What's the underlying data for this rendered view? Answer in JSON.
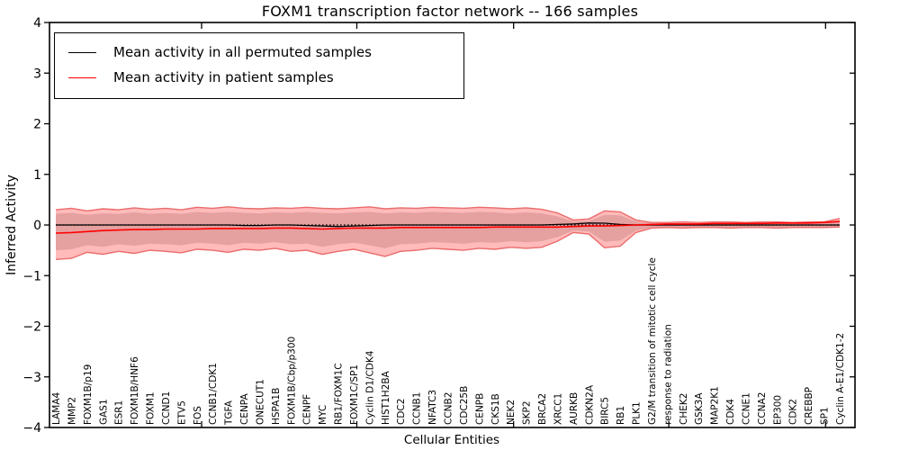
{
  "title": "FOXM1 transcription factor network -- 166 samples",
  "legend": {
    "items": [
      {
        "label": "Mean activity in all permuted samples",
        "color": "#000000"
      },
      {
        "label": "Mean activity in patient samples",
        "color": "#ff0000"
      }
    ],
    "position": "upper left"
  },
  "chart_data": {
    "type": "line",
    "title": "FOXM1 transcription factor network -- 166 samples",
    "xlabel": "Cellular Entities",
    "ylabel": "Inferred Activity",
    "ylim": [
      -4,
      4
    ],
    "yticks": [
      {
        "v": 4,
        "label": "4"
      },
      {
        "v": 3,
        "label": "3"
      },
      {
        "v": 2,
        "label": "2"
      },
      {
        "v": 1,
        "label": "1"
      },
      {
        "v": 0,
        "label": "0"
      },
      {
        "v": -1,
        "label": "−1"
      },
      {
        "v": -2,
        "label": "−2"
      },
      {
        "v": -3,
        "label": "−3"
      },
      {
        "v": -4,
        "label": "−4"
      }
    ],
    "x_major_tick_indices": [
      9.3,
      19.2,
      29.2,
      39.1,
      49.1
    ],
    "grid": false,
    "legend_position": "upper left",
    "zero_line": {
      "style": "dotted",
      "color": "#000000",
      "value": 0
    },
    "categories": [
      "LAMA4",
      "MMP2",
      "FOXM1B/p19",
      "GAS1",
      "ESR1",
      "FOXM1B/HNF6",
      "FOXM1",
      "CCND1",
      "ETV5",
      "FOS",
      "CCNB1/CDK1",
      "TGFA",
      "CENPA",
      "ONECUT1",
      "HSPA1B",
      "FOXM1B/Cbp/p300",
      "CENPF",
      "MYC",
      "RB1/FOXM1C",
      "FOXM1C/SP1",
      "Cyclin D1/CDK4",
      "HIST1H2BA",
      "CDC2",
      "CCNB1",
      "NFATC3",
      "CCNB2",
      "CDC25B",
      "CENPB",
      "CKS1B",
      "NEK2",
      "SKP2",
      "BRCA2",
      "XRCC1",
      "AURKB",
      "CDKN2A",
      "BIRC5",
      "RB1",
      "PLK1",
      "G2/M transition of mitotic cell cycle",
      "response to radiation",
      "CHEK2",
      "GSK3A",
      "MAP2K1",
      "CDK4",
      "CCNE1",
      "CCNA2",
      "EP300",
      "CDK2",
      "CREBBP",
      "SP1",
      "Cyclin A-E1/CDK1-2"
    ],
    "series": [
      {
        "name": "Mean activity in all permuted samples",
        "color": "#000000",
        "width": 1.3,
        "values": [
          0,
          0,
          0,
          0,
          0,
          0,
          0,
          0,
          0,
          0,
          0,
          0,
          -0.01,
          -0.01,
          0,
          0,
          -0.01,
          -0.02,
          -0.03,
          -0.02,
          -0.01,
          0,
          0,
          0,
          0,
          0,
          0,
          0,
          0,
          0,
          0,
          0,
          0.01,
          0.02,
          0.04,
          0.035,
          0.01,
          0,
          0,
          0,
          0,
          0,
          0,
          0,
          0,
          0,
          0,
          0,
          0,
          0,
          0
        ]
      },
      {
        "name": "Mean activity in patient samples",
        "color": "#ff0000",
        "width": 1.6,
        "values": [
          -0.16,
          -0.15,
          -0.13,
          -0.11,
          -0.1,
          -0.09,
          -0.09,
          -0.08,
          -0.08,
          -0.08,
          -0.07,
          -0.07,
          -0.07,
          -0.07,
          -0.06,
          -0.06,
          -0.07,
          -0.08,
          -0.07,
          -0.06,
          -0.06,
          -0.06,
          -0.05,
          -0.05,
          -0.05,
          -0.05,
          -0.05,
          -0.05,
          -0.04,
          -0.04,
          -0.04,
          -0.04,
          -0.04,
          -0.03,
          -0.02,
          -0.02,
          -0.01,
          0.0,
          0.01,
          0.02,
          0.02,
          0.02,
          0.03,
          0.03,
          0.03,
          0.03,
          0.04,
          0.04,
          0.04,
          0.05,
          0.07
        ]
      }
    ],
    "bands": [
      {
        "name": "permuted-std-band",
        "fill": "rgba(130,130,130,0.28)",
        "edge": "",
        "upper": [
          0.22,
          0.24,
          0.2,
          0.23,
          0.22,
          0.25,
          0.22,
          0.24,
          0.22,
          0.26,
          0.24,
          0.26,
          0.24,
          0.23,
          0.25,
          0.24,
          0.26,
          0.24,
          0.23,
          0.25,
          0.26,
          0.23,
          0.25,
          0.24,
          0.26,
          0.25,
          0.24,
          0.26,
          0.25,
          0.23,
          0.25,
          0.23,
          0.17,
          0.07,
          0.08,
          0.2,
          0.19,
          0.07,
          0.035,
          0.035,
          0.04,
          0.035,
          0.04,
          0.04,
          0.035,
          0.04,
          0.04,
          0.035,
          0.04,
          0.04,
          0.08
        ],
        "lower": [
          -0.5,
          -0.48,
          -0.4,
          -0.43,
          -0.38,
          -0.41,
          -0.37,
          -0.38,
          -0.4,
          -0.35,
          -0.37,
          -0.4,
          -0.35,
          -0.37,
          -0.34,
          -0.38,
          -0.37,
          -0.43,
          -0.38,
          -0.35,
          -0.4,
          -0.46,
          -0.38,
          -0.37,
          -0.34,
          -0.35,
          -0.37,
          -0.34,
          -0.35,
          -0.32,
          -0.34,
          -0.32,
          -0.24,
          -0.11,
          -0.13,
          -0.33,
          -0.31,
          -0.11,
          -0.045,
          -0.04,
          -0.045,
          -0.04,
          -0.04,
          -0.045,
          -0.04,
          -0.04,
          -0.045,
          -0.04,
          -0.04,
          -0.04,
          -0.03
        ]
      },
      {
        "name": "patient-std-band",
        "fill": "rgba(255,0,0,0.27)",
        "edge": "rgba(232,88,88,0.85)",
        "upper": [
          0.3,
          0.33,
          0.28,
          0.32,
          0.3,
          0.34,
          0.31,
          0.33,
          0.3,
          0.35,
          0.33,
          0.36,
          0.33,
          0.32,
          0.34,
          0.33,
          0.35,
          0.33,
          0.32,
          0.34,
          0.36,
          0.32,
          0.34,
          0.33,
          0.35,
          0.34,
          0.33,
          0.35,
          0.34,
          0.32,
          0.34,
          0.31,
          0.24,
          0.1,
          0.12,
          0.28,
          0.26,
          0.1,
          0.05,
          0.05,
          0.06,
          0.05,
          0.06,
          0.06,
          0.05,
          0.06,
          0.06,
          0.05,
          0.06,
          0.06,
          0.13
        ],
        "lower": [
          -0.68,
          -0.66,
          -0.54,
          -0.58,
          -0.52,
          -0.56,
          -0.5,
          -0.52,
          -0.55,
          -0.48,
          -0.5,
          -0.54,
          -0.48,
          -0.5,
          -0.46,
          -0.52,
          -0.5,
          -0.58,
          -0.52,
          -0.48,
          -0.55,
          -0.62,
          -0.52,
          -0.5,
          -0.46,
          -0.48,
          -0.5,
          -0.46,
          -0.48,
          -0.44,
          -0.46,
          -0.44,
          -0.32,
          -0.15,
          -0.18,
          -0.45,
          -0.42,
          -0.15,
          -0.06,
          -0.05,
          -0.06,
          -0.05,
          -0.05,
          -0.06,
          -0.05,
          -0.05,
          -0.06,
          -0.05,
          -0.05,
          -0.05,
          -0.04
        ]
      }
    ]
  }
}
